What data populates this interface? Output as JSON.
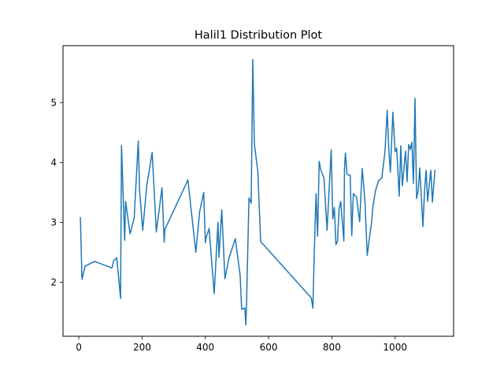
{
  "chart_data": {
    "type": "line",
    "title": "Halil1 Distribution Plot",
    "xlabel": "",
    "ylabel": "",
    "xlim": [
      -50,
      1185
    ],
    "ylim": [
      1.1,
      5.95
    ],
    "xticks": [
      0,
      200,
      400,
      600,
      800,
      1000
    ],
    "yticks": [
      2,
      3,
      4,
      5
    ],
    "grid": false,
    "colors": {
      "line": "#1f77b4",
      "axes": "#000000",
      "background": "#ffffff"
    },
    "series": [
      {
        "x": [
          5,
          10,
          20,
          50,
          105,
          110,
          120,
          132,
          135,
          145,
          148,
          162,
          175,
          188,
          192,
          202,
          215,
          232,
          245,
          263,
          270,
          272,
          345,
          355,
          358,
          370,
          382,
          395,
          400,
          402,
          412,
          428,
          440,
          443,
          452,
          462,
          475,
          495,
          500,
          510,
          515,
          525,
          528,
          530,
          538,
          545,
          550,
          555,
          566,
          575,
          735,
          740,
          745,
          750,
          755,
          760,
          765,
          775,
          785,
          792,
          798,
          803,
          808,
          813,
          818,
          823,
          828,
          838,
          840,
          843,
          848,
          853,
          858,
          863,
          868,
          878,
          888,
          896,
          900,
          905,
          912,
          920,
          925,
          930,
          938,
          948,
          958,
          968,
          975,
          980,
          985,
          993,
          1000,
          1005,
          1013,
          1018,
          1023,
          1033,
          1038,
          1043,
          1048,
          1053,
          1058,
          1063,
          1068,
          1073,
          1078,
          1088,
          1093,
          1098,
          1103,
          1108,
          1113,
          1118,
          1126
        ],
        "values": [
          3.08,
          2.05,
          2.27,
          2.35,
          2.24,
          2.36,
          2.41,
          1.73,
          4.28,
          2.7,
          3.35,
          2.81,
          3.07,
          4.36,
          3.55,
          2.87,
          3.62,
          4.17,
          2.84,
          3.58,
          2.67,
          2.88,
          3.71,
          3.22,
          3.08,
          2.5,
          3.18,
          3.5,
          2.66,
          2.74,
          2.9,
          1.81,
          3.0,
          2.42,
          3.21,
          2.06,
          2.41,
          2.73,
          2.52,
          2.12,
          1.55,
          1.57,
          1.29,
          1.57,
          3.41,
          3.32,
          5.72,
          4.31,
          3.85,
          2.68,
          1.74,
          1.57,
          2.59,
          3.48,
          2.77,
          4.02,
          3.88,
          3.74,
          2.87,
          3.61,
          4.21,
          3.06,
          3.25,
          2.63,
          2.69,
          3.23,
          3.35,
          2.69,
          3.89,
          4.16,
          3.81,
          3.79,
          3.79,
          2.78,
          3.48,
          3.42,
          3.01,
          3.9,
          3.66,
          3.31,
          2.45,
          2.79,
          2.97,
          3.27,
          3.53,
          3.7,
          3.74,
          4.18,
          4.87,
          4.23,
          3.84,
          4.84,
          4.18,
          4.24,
          3.44,
          4.28,
          3.61,
          4.19,
          3.68,
          4.3,
          4.22,
          4.34,
          3.65,
          5.07,
          3.4,
          3.53,
          3.91,
          2.93,
          3.52,
          3.87,
          3.35,
          3.63,
          3.87,
          3.34,
          3.87
        ]
      }
    ]
  }
}
